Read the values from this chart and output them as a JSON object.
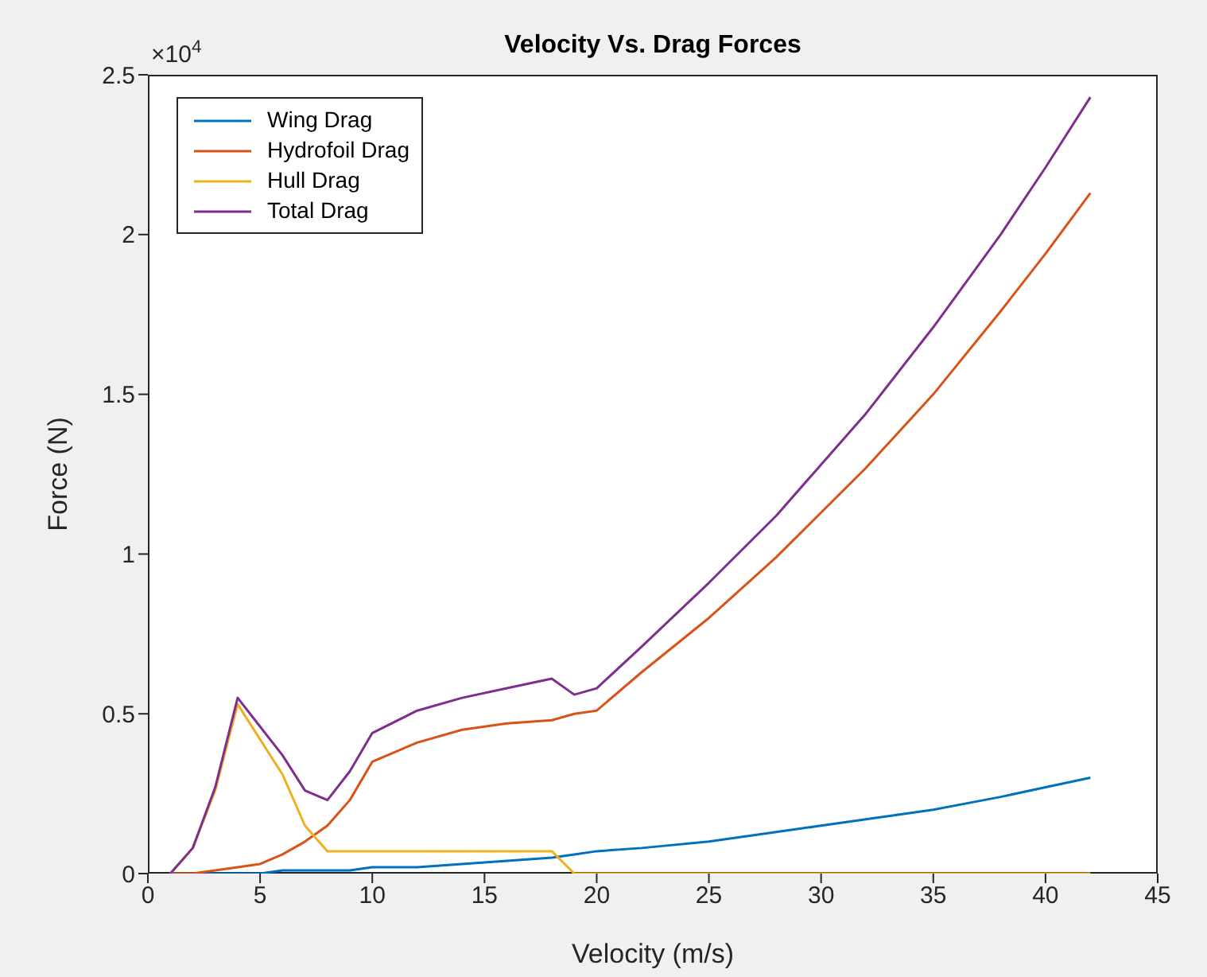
{
  "chart_data": {
    "type": "line",
    "title": "Velocity Vs. Drag Forces",
    "xlabel": "Velocity (m/s)",
    "ylabel": "Force (N)",
    "annotations": [
      "×10$^{4}$"
    ],
    "x": [
      1,
      2,
      3,
      4,
      5,
      6,
      7,
      8,
      9,
      10,
      12,
      14,
      16,
      18,
      19,
      20,
      22,
      25,
      28,
      30,
      32,
      35,
      38,
      40,
      42
    ],
    "series": [
      {
        "name": "Wing Drag",
        "color": "#0072bd",
        "values": [
          0,
          0,
          0,
          0,
          0,
          0.01,
          0.01,
          0.01,
          0.01,
          0.02,
          0.02,
          0.03,
          0.04,
          0.05,
          0.06,
          0.07,
          0.08,
          0.1,
          0.13,
          0.15,
          0.17,
          0.2,
          0.24,
          0.27,
          0.3
        ]
      },
      {
        "name": "Hydrofoil Drag",
        "color": "#d95319",
        "values": [
          0,
          0,
          0.01,
          0.02,
          0.03,
          0.06,
          0.1,
          0.15,
          0.23,
          0.35,
          0.41,
          0.45,
          0.47,
          0.48,
          0.5,
          0.51,
          0.63,
          0.8,
          0.99,
          1.13,
          1.27,
          1.5,
          1.76,
          1.94,
          2.13
        ]
      },
      {
        "name": "Hull Drag",
        "color": "#edb120",
        "values": [
          0,
          0.08,
          0.26,
          0.53,
          0.42,
          0.31,
          0.15,
          0.07,
          0.07,
          0.07,
          0.07,
          0.07,
          0.07,
          0.07,
          0,
          0,
          0,
          0,
          0,
          0,
          0,
          0,
          0,
          0,
          0
        ]
      },
      {
        "name": "Total Drag",
        "color": "#7e2f8e",
        "values": [
          0,
          0.08,
          0.27,
          0.55,
          0.46,
          0.37,
          0.26,
          0.23,
          0.32,
          0.44,
          0.51,
          0.55,
          0.58,
          0.61,
          0.56,
          0.58,
          0.71,
          0.91,
          1.12,
          1.28,
          1.44,
          1.71,
          2,
          2.21,
          2.43
        ]
      }
    ],
    "xlim": [
      0,
      45
    ],
    "xticks": [
      0,
      5,
      10,
      15,
      20,
      25,
      30,
      35,
      40,
      45
    ],
    "ylim": [
      0,
      2.5
    ],
    "yticks": [
      0,
      0.5,
      1,
      1.5,
      2,
      2.5
    ],
    "legend": "top left",
    "marker": "none",
    "line_style": "solid",
    "grid": false
  }
}
